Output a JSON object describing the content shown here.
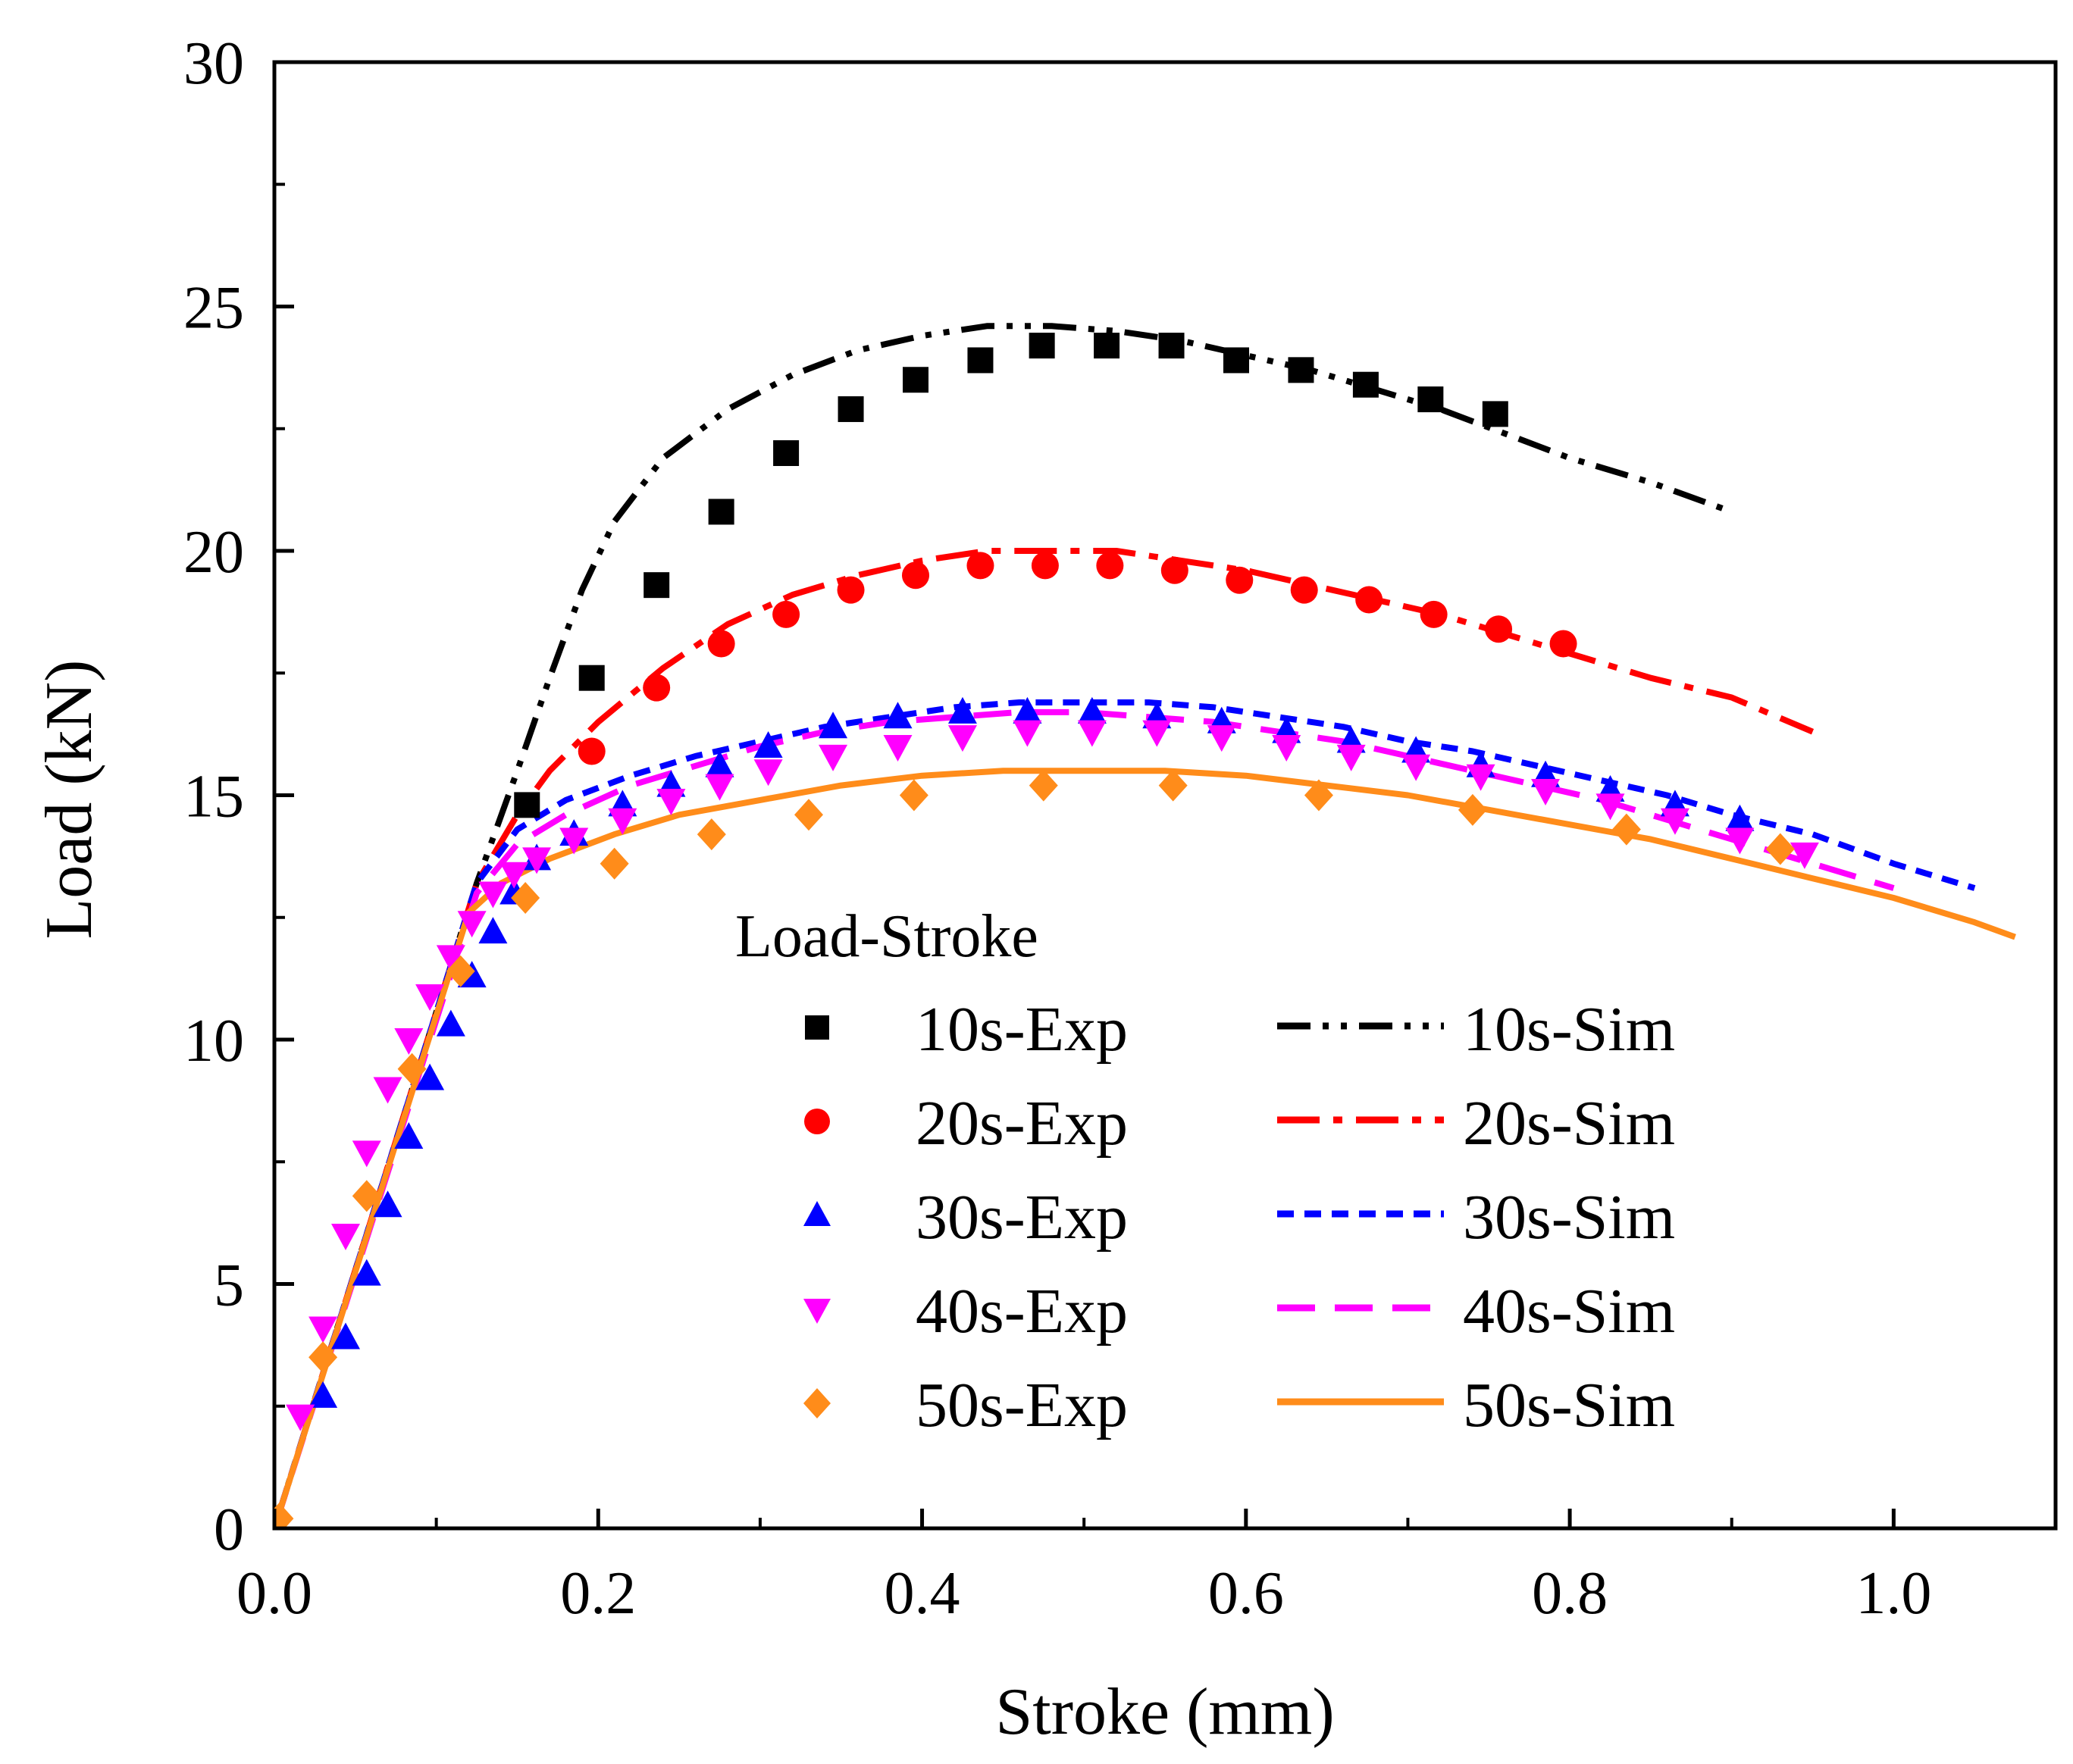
{
  "chart_data": {
    "type": "line",
    "title": "",
    "xlabel": "Stroke (mm)",
    "ylabel": "Load (kN)",
    "xlim": [
      0,
      1.1
    ],
    "ylim": [
      0,
      30
    ],
    "xticks": [
      0.0,
      0.2,
      0.4,
      0.6,
      0.8,
      1.0
    ],
    "xtick_labels": [
      "0.0",
      "0.2",
      "0.4",
      "0.6",
      "0.8",
      "1.0"
    ],
    "yticks": [
      0,
      5,
      10,
      15,
      20,
      25,
      30
    ],
    "ytick_labels": [
      "0",
      "5",
      "10",
      "15",
      "20",
      "25",
      "30"
    ],
    "grid": false,
    "legend_title": "Load-Stroke",
    "legend_position": "bottom-center",
    "series": [
      {
        "name": "10s-Exp",
        "kind": "marker",
        "marker": "square",
        "color": "#000000",
        "x": [
          0.156,
          0.196,
          0.236,
          0.276,
          0.316,
          0.356,
          0.396,
          0.436,
          0.474,
          0.514,
          0.554,
          0.594,
          0.634,
          0.674,
          0.714,
          0.754
        ],
        "y": [
          14.8,
          17.4,
          19.3,
          20.8,
          22.0,
          22.9,
          23.5,
          23.9,
          24.2,
          24.2,
          24.2,
          23.9,
          23.7,
          23.4,
          23.1,
          22.8
        ]
      },
      {
        "name": "20s-Exp",
        "kind": "marker",
        "marker": "circle",
        "color": "#ff0000",
        "x": [
          0.196,
          0.236,
          0.276,
          0.316,
          0.356,
          0.396,
          0.436,
          0.476,
          0.516,
          0.556,
          0.596,
          0.636,
          0.676,
          0.716,
          0.756,
          0.796
        ],
        "y": [
          15.9,
          17.2,
          18.1,
          18.7,
          19.2,
          19.5,
          19.7,
          19.7,
          19.7,
          19.6,
          19.4,
          19.2,
          19.0,
          18.7,
          18.4,
          18.1
        ]
      },
      {
        "name": "30s-Exp",
        "kind": "marker",
        "marker": "triangle-up",
        "color": "#0000ff",
        "x": [
          0.03,
          0.044,
          0.057,
          0.07,
          0.083,
          0.096,
          0.109,
          0.122,
          0.135,
          0.148,
          0.162,
          0.185,
          0.215,
          0.245,
          0.275,
          0.305,
          0.345,
          0.385,
          0.425,
          0.465,
          0.505,
          0.545,
          0.585,
          0.625,
          0.665,
          0.705,
          0.745,
          0.785,
          0.825,
          0.865,
          0.905
        ],
        "y": [
          2.7,
          3.9,
          5.2,
          6.6,
          8.0,
          9.2,
          10.3,
          11.3,
          12.2,
          13.0,
          13.7,
          14.2,
          14.8,
          15.2,
          15.6,
          16.0,
          16.4,
          16.6,
          16.7,
          16.7,
          16.7,
          16.6,
          16.5,
          16.3,
          16.1,
          15.9,
          15.6,
          15.4,
          15.1,
          14.8,
          14.5
        ]
      },
      {
        "name": "40s-Exp",
        "kind": "marker",
        "marker": "triangle-down",
        "color": "#ff00ff",
        "x": [
          0.016,
          0.03,
          0.044,
          0.057,
          0.07,
          0.083,
          0.096,
          0.109,
          0.122,
          0.135,
          0.148,
          0.162,
          0.185,
          0.215,
          0.245,
          0.275,
          0.305,
          0.345,
          0.385,
          0.425,
          0.465,
          0.505,
          0.545,
          0.585,
          0.625,
          0.665,
          0.705,
          0.745,
          0.785,
          0.825,
          0.865,
          0.905,
          0.945
        ],
        "y": [
          2.3,
          4.1,
          6.0,
          7.7,
          9.0,
          10.0,
          10.9,
          11.7,
          12.4,
          13.0,
          13.4,
          13.7,
          14.1,
          14.5,
          14.9,
          15.2,
          15.5,
          15.8,
          16.0,
          16.2,
          16.3,
          16.3,
          16.3,
          16.2,
          16.0,
          15.8,
          15.6,
          15.4,
          15.1,
          14.8,
          14.5,
          14.1,
          13.8
        ]
      },
      {
        "name": "50s-Exp",
        "kind": "marker",
        "marker": "diamond",
        "color": "#ff8c1a",
        "x": [
          0.003,
          0.03,
          0.057,
          0.085,
          0.115,
          0.155,
          0.21,
          0.27,
          0.33,
          0.395,
          0.475,
          0.555,
          0.645,
          0.74,
          0.835,
          0.93
        ],
        "y": [
          0.2,
          3.5,
          6.8,
          9.4,
          11.4,
          12.9,
          13.6,
          14.2,
          14.6,
          15.0,
          15.2,
          15.2,
          15.0,
          14.7,
          14.3,
          13.9
        ]
      },
      {
        "name": "10s-Sim",
        "kind": "line",
        "dash": "dash-dot-dot",
        "color": "#000000",
        "x": [
          0.0,
          0.125,
          0.15,
          0.17,
          0.19,
          0.21,
          0.24,
          0.28,
          0.32,
          0.36,
          0.4,
          0.44,
          0.48,
          0.52,
          0.56,
          0.6,
          0.64,
          0.68,
          0.72,
          0.76,
          0.8,
          0.85,
          0.9
        ],
        "y": [
          0.0,
          13.2,
          15.5,
          17.4,
          19.2,
          20.6,
          21.9,
          22.9,
          23.6,
          24.1,
          24.4,
          24.6,
          24.6,
          24.5,
          24.3,
          24.0,
          23.7,
          23.3,
          22.9,
          22.4,
          21.9,
          21.4,
          20.8
        ]
      },
      {
        "name": "20s-Sim",
        "kind": "line",
        "dash": "dash-dot",
        "color": "#ff0000",
        "x": [
          0.0,
          0.125,
          0.15,
          0.17,
          0.2,
          0.24,
          0.28,
          0.32,
          0.36,
          0.4,
          0.44,
          0.48,
          0.52,
          0.56,
          0.6,
          0.64,
          0.68,
          0.72,
          0.76,
          0.8,
          0.85,
          0.9,
          0.95
        ],
        "y": [
          0.0,
          13.2,
          14.6,
          15.5,
          16.5,
          17.6,
          18.5,
          19.1,
          19.5,
          19.8,
          20.0,
          20.0,
          20.0,
          19.8,
          19.6,
          19.3,
          19.0,
          18.7,
          18.3,
          17.9,
          17.4,
          17.0,
          16.3
        ]
      },
      {
        "name": "30s-Sim",
        "kind": "line",
        "dash": "short-dash",
        "color": "#0000ff",
        "x": [
          0.0,
          0.125,
          0.15,
          0.18,
          0.22,
          0.26,
          0.3,
          0.34,
          0.38,
          0.42,
          0.46,
          0.5,
          0.54,
          0.58,
          0.62,
          0.66,
          0.7,
          0.74,
          0.78,
          0.82,
          0.86,
          0.9,
          0.95,
          1.0,
          1.05
        ],
        "y": [
          0.0,
          13.2,
          14.3,
          14.9,
          15.4,
          15.8,
          16.1,
          16.4,
          16.6,
          16.8,
          16.9,
          16.9,
          16.9,
          16.8,
          16.6,
          16.4,
          16.1,
          15.9,
          15.6,
          15.3,
          15.0,
          14.6,
          14.2,
          13.6,
          13.1
        ]
      },
      {
        "name": "40s-Sim",
        "kind": "line",
        "dash": "long-dash",
        "color": "#ff00ff",
        "x": [
          0.0,
          0.125,
          0.15,
          0.18,
          0.22,
          0.26,
          0.3,
          0.34,
          0.38,
          0.42,
          0.46,
          0.5,
          0.54,
          0.58,
          0.62,
          0.66,
          0.7,
          0.74,
          0.78,
          0.82,
          0.86,
          0.9,
          0.95,
          1.0
        ],
        "y": [
          0.0,
          13.0,
          14.0,
          14.6,
          15.2,
          15.6,
          16.0,
          16.3,
          16.5,
          16.6,
          16.7,
          16.7,
          16.6,
          16.5,
          16.3,
          16.1,
          15.8,
          15.5,
          15.2,
          14.9,
          14.5,
          14.1,
          13.6,
          13.1
        ]
      },
      {
        "name": "50s-Sim",
        "kind": "line",
        "dash": "solid",
        "color": "#ff8c1a",
        "x": [
          0.0,
          0.12,
          0.14,
          0.17,
          0.21,
          0.25,
          0.3,
          0.35,
          0.4,
          0.45,
          0.5,
          0.55,
          0.6,
          0.65,
          0.7,
          0.75,
          0.8,
          0.85,
          0.9,
          0.95,
          1.0,
          1.05,
          1.075
        ],
        "y": [
          0.0,
          12.6,
          13.2,
          13.7,
          14.2,
          14.6,
          14.9,
          15.2,
          15.4,
          15.5,
          15.5,
          15.5,
          15.4,
          15.2,
          15.0,
          14.7,
          14.4,
          14.1,
          13.7,
          13.3,
          12.9,
          12.4,
          12.1
        ]
      }
    ]
  }
}
